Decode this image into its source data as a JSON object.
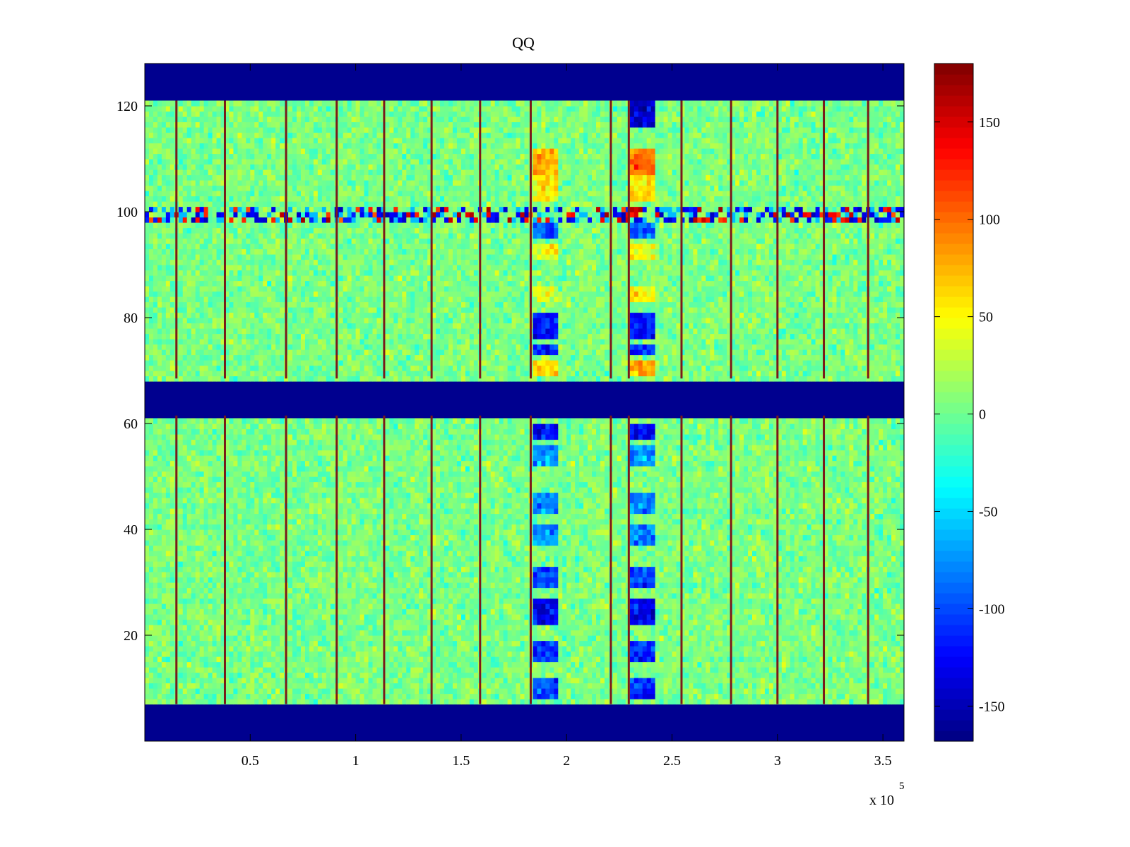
{
  "chart_data": {
    "type": "heatmap",
    "title": "QQ",
    "xlabel": "",
    "ylabel": "",
    "x_multiplier": "x 10",
    "x_multiplier_exponent": "5",
    "xlim": [
      0,
      360000
    ],
    "ylim": [
      0,
      128
    ],
    "x_ticks": [
      {
        "value": 50000,
        "label": "0.5"
      },
      {
        "value": 100000,
        "label": "1"
      },
      {
        "value": 150000,
        "label": "1.5"
      },
      {
        "value": 200000,
        "label": "2"
      },
      {
        "value": 250000,
        "label": "2.5"
      },
      {
        "value": 300000,
        "label": "3"
      },
      {
        "value": 350000,
        "label": "3.5"
      }
    ],
    "y_ticks": [
      {
        "value": 20,
        "label": "20"
      },
      {
        "value": 40,
        "label": "40"
      },
      {
        "value": 60,
        "label": "60"
      },
      {
        "value": 80,
        "label": "80"
      },
      {
        "value": 100,
        "label": "100"
      },
      {
        "value": 120,
        "label": "120"
      }
    ],
    "colorbar": {
      "colormap": "jet",
      "clim": [
        -168,
        180
      ],
      "ticks": [
        {
          "value": 150,
          "label": "150"
        },
        {
          "value": 100,
          "label": "100"
        },
        {
          "value": 50,
          "label": "50"
        },
        {
          "value": 0,
          "label": "0"
        },
        {
          "value": -50,
          "label": "-50"
        },
        {
          "value": -100,
          "label": "-100"
        },
        {
          "value": -150,
          "label": "-150"
        }
      ]
    },
    "background_value": -168,
    "masked_row_bands": [
      [
        0,
        7
      ],
      [
        61.5,
        68.5
      ],
      [
        121,
        128
      ]
    ],
    "noise_mean": 5,
    "noise_std": 13,
    "vertical_lines_x": [
      15000,
      38000,
      67000,
      91000,
      113500,
      136000,
      159000,
      183000,
      221000,
      229500,
      254500,
      278000,
      300000,
      322000,
      343000
    ],
    "noisy_row_band": [
      98.5,
      101.5
    ],
    "event_columns": [
      {
        "x_range": [
          183500,
          196000
        ],
        "profile": [
          {
            "y": [
              8,
              12
            ],
            "value": -100
          },
          {
            "y": [
              15,
              19
            ],
            "value": -105
          },
          {
            "y": [
              22,
              27
            ],
            "value": -130
          },
          {
            "y": [
              29,
              33
            ],
            "value": -100
          },
          {
            "y": [
              37,
              41
            ],
            "value": -75
          },
          {
            "y": [
              43,
              47
            ],
            "value": -75
          },
          {
            "y": [
              52,
              56
            ],
            "value": -70
          },
          {
            "y": [
              57,
              60
            ],
            "value": -120
          },
          {
            "y": [
              69,
              72
            ],
            "value": 60
          },
          {
            "y": [
              73,
              75
            ],
            "value": -115
          },
          {
            "y": [
              76,
              81
            ],
            "value": -120
          },
          {
            "y": [
              83,
              86
            ],
            "value": 35
          },
          {
            "y": [
              91,
              94
            ],
            "value": 45
          },
          {
            "y": [
              95,
              98
            ],
            "value": -90
          },
          {
            "y": [
              102,
              107
            ],
            "value": 55
          },
          {
            "y": [
              107,
              112
            ],
            "value": 75
          }
        ]
      },
      {
        "x_range": [
          230500,
          242000
        ],
        "profile": [
          {
            "y": [
              8,
              12
            ],
            "value": -110
          },
          {
            "y": [
              15,
              19
            ],
            "value": -115
          },
          {
            "y": [
              22,
              27
            ],
            "value": -130
          },
          {
            "y": [
              29,
              33
            ],
            "value": -105
          },
          {
            "y": [
              37,
              41
            ],
            "value": -80
          },
          {
            "y": [
              43,
              47
            ],
            "value": -80
          },
          {
            "y": [
              52,
              56
            ],
            "value": -75
          },
          {
            "y": [
              57,
              60
            ],
            "value": -125
          },
          {
            "y": [
              69,
              72
            ],
            "value": 75
          },
          {
            "y": [
              73,
              75
            ],
            "value": -110
          },
          {
            "y": [
              76,
              81
            ],
            "value": -115
          },
          {
            "y": [
              83,
              86
            ],
            "value": 55
          },
          {
            "y": [
              91,
              94
            ],
            "value": 50
          },
          {
            "y": [
              95,
              98
            ],
            "value": -90
          },
          {
            "y": [
              102,
              107
            ],
            "value": 60
          },
          {
            "y": [
              107,
              112
            ],
            "value": 95
          },
          {
            "y": [
              116,
              121
            ],
            "value": -140
          }
        ]
      }
    ],
    "grid": false,
    "legend": "none"
  }
}
